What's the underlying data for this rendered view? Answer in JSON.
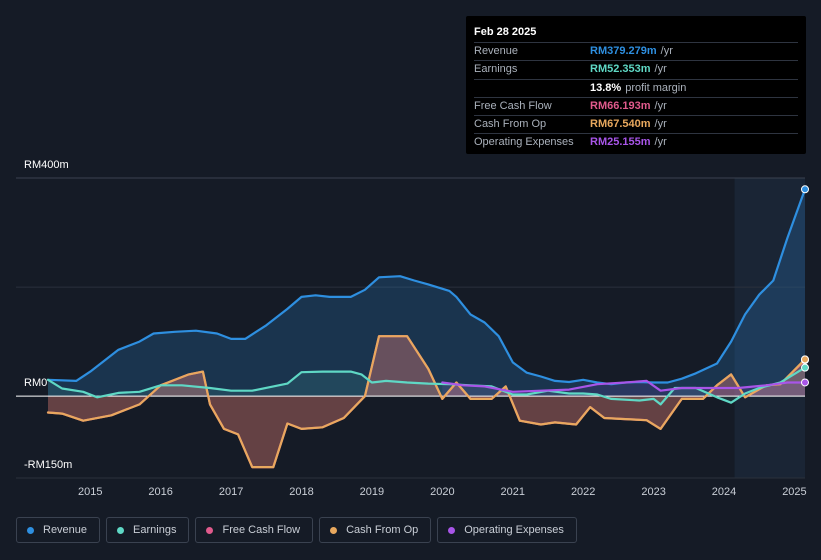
{
  "tooltip": {
    "date": "Feb 28 2025",
    "rows": [
      {
        "label": "Revenue",
        "value": "RM379.279m",
        "unit": "/yr",
        "color": "#2e8fe0"
      },
      {
        "label": "Earnings",
        "value": "RM52.353m",
        "unit": "/yr",
        "color": "#5fd8c5"
      },
      {
        "label": "",
        "value": "13.8%",
        "unit": "profit margin",
        "color": "#ffffff"
      },
      {
        "label": "Free Cash Flow",
        "value": "RM66.193m",
        "unit": "/yr",
        "color": "#e05a8c"
      },
      {
        "label": "Cash From Op",
        "value": "RM67.540m",
        "unit": "/yr",
        "color": "#e8a85e"
      },
      {
        "label": "Operating Expenses",
        "value": "RM25.155m",
        "unit": "/yr",
        "color": "#a855e8"
      }
    ]
  },
  "legend": [
    {
      "label": "Revenue",
      "color": "#2e8fe0"
    },
    {
      "label": "Earnings",
      "color": "#5fd8c5"
    },
    {
      "label": "Free Cash Flow",
      "color": "#e05a8c"
    },
    {
      "label": "Cash From Op",
      "color": "#e8a85e"
    },
    {
      "label": "Operating Expenses",
      "color": "#a855e8"
    }
  ],
  "chart_data": {
    "type": "area",
    "title": "",
    "unit": "RM m",
    "y_labels": [
      "RM400m",
      "RM0",
      "-RM150m"
    ],
    "ylim": [
      -150,
      400
    ],
    "xlim": [
      2014.4,
      2025.15
    ],
    "x_ticks": [
      "2015",
      "2016",
      "2017",
      "2018",
      "2019",
      "2020",
      "2021",
      "2022",
      "2023",
      "2024",
      "2025"
    ],
    "forecast_shade_start": 2024.15,
    "series": [
      {
        "name": "Revenue",
        "color": "#2e8fe0",
        "points": [
          [
            2014.4,
            30
          ],
          [
            2014.8,
            28
          ],
          [
            2015.0,
            45
          ],
          [
            2015.4,
            85
          ],
          [
            2015.7,
            100
          ],
          [
            2015.9,
            115
          ],
          [
            2016.2,
            118
          ],
          [
            2016.5,
            120
          ],
          [
            2016.8,
            115
          ],
          [
            2017.0,
            105
          ],
          [
            2017.2,
            105
          ],
          [
            2017.5,
            130
          ],
          [
            2017.8,
            160
          ],
          [
            2018.0,
            182
          ],
          [
            2018.2,
            185
          ],
          [
            2018.4,
            182
          ],
          [
            2018.7,
            182
          ],
          [
            2018.9,
            195
          ],
          [
            2019.1,
            218
          ],
          [
            2019.4,
            220
          ],
          [
            2019.6,
            212
          ],
          [
            2019.8,
            205
          ],
          [
            2020.1,
            193
          ],
          [
            2020.2,
            182
          ],
          [
            2020.4,
            150
          ],
          [
            2020.6,
            135
          ],
          [
            2020.8,
            110
          ],
          [
            2021.0,
            62
          ],
          [
            2021.2,
            43
          ],
          [
            2021.4,
            36
          ],
          [
            2021.6,
            28
          ],
          [
            2021.8,
            26
          ],
          [
            2022.0,
            30
          ],
          [
            2022.2,
            25
          ],
          [
            2022.4,
            22
          ],
          [
            2022.6,
            25
          ],
          [
            2022.8,
            26
          ],
          [
            2023.0,
            25
          ],
          [
            2023.2,
            25
          ],
          [
            2023.4,
            32
          ],
          [
            2023.6,
            42
          ],
          [
            2023.9,
            60
          ],
          [
            2024.1,
            100
          ],
          [
            2024.3,
            150
          ],
          [
            2024.5,
            186
          ],
          [
            2024.7,
            212
          ],
          [
            2024.9,
            290
          ],
          [
            2025.15,
            379.279
          ]
        ]
      },
      {
        "name": "Earnings",
        "color": "#5fd8c5",
        "points": [
          [
            2014.4,
            30
          ],
          [
            2014.6,
            14
          ],
          [
            2014.9,
            8
          ],
          [
            2015.1,
            -2
          ],
          [
            2015.4,
            6
          ],
          [
            2015.7,
            8
          ],
          [
            2016.0,
            20
          ],
          [
            2016.3,
            20
          ],
          [
            2016.7,
            15
          ],
          [
            2017.0,
            10
          ],
          [
            2017.3,
            10
          ],
          [
            2017.6,
            18
          ],
          [
            2017.8,
            23
          ],
          [
            2018.0,
            44
          ],
          [
            2018.3,
            45
          ],
          [
            2018.7,
            45
          ],
          [
            2018.85,
            40
          ],
          [
            2019.0,
            25
          ],
          [
            2019.2,
            28
          ],
          [
            2019.5,
            25
          ],
          [
            2019.8,
            23
          ],
          [
            2020.1,
            22
          ],
          [
            2020.4,
            20
          ],
          [
            2020.7,
            18
          ],
          [
            2021.0,
            3
          ],
          [
            2021.2,
            3
          ],
          [
            2021.5,
            10
          ],
          [
            2021.8,
            5
          ],
          [
            2022.0,
            5
          ],
          [
            2022.2,
            3
          ],
          [
            2022.4,
            -5
          ],
          [
            2022.8,
            -8
          ],
          [
            2023.0,
            -5
          ],
          [
            2023.1,
            -15
          ],
          [
            2023.3,
            15
          ],
          [
            2023.6,
            15
          ],
          [
            2023.9,
            -2
          ],
          [
            2024.1,
            -12
          ],
          [
            2024.3,
            5
          ],
          [
            2024.5,
            15
          ],
          [
            2024.8,
            25
          ],
          [
            2025.15,
            52.353
          ]
        ]
      },
      {
        "name": "Free Cash Flow",
        "color": "#e05a8c",
        "points": [
          [
            2014.4,
            -30
          ],
          [
            2014.6,
            -32
          ],
          [
            2014.9,
            -45
          ],
          [
            2015.3,
            -35
          ],
          [
            2015.7,
            -15
          ],
          [
            2016.0,
            20
          ],
          [
            2016.4,
            40
          ],
          [
            2016.6,
            45
          ],
          [
            2016.7,
            -15
          ],
          [
            2016.9,
            -60
          ],
          [
            2017.1,
            -70
          ],
          [
            2017.3,
            -130
          ],
          [
            2017.6,
            -130
          ],
          [
            2017.8,
            -50
          ],
          [
            2018.0,
            -60
          ],
          [
            2018.3,
            -57
          ],
          [
            2018.6,
            -40
          ],
          [
            2018.9,
            0
          ],
          [
            2019.1,
            110
          ],
          [
            2019.5,
            110
          ],
          [
            2019.8,
            50
          ],
          [
            2020.0,
            -5
          ],
          [
            2020.2,
            25
          ],
          [
            2020.4,
            -5
          ],
          [
            2020.7,
            -5
          ],
          [
            2020.9,
            18
          ],
          [
            2021.1,
            -45
          ],
          [
            2021.4,
            -52
          ],
          [
            2021.6,
            -48
          ],
          [
            2021.9,
            -52
          ],
          [
            2022.1,
            -20
          ],
          [
            2022.3,
            -40
          ],
          [
            2022.6,
            -42
          ],
          [
            2022.9,
            -44
          ],
          [
            2023.1,
            -60
          ],
          [
            2023.4,
            -5
          ],
          [
            2023.7,
            -5
          ],
          [
            2023.9,
            20
          ],
          [
            2024.1,
            40
          ],
          [
            2024.3,
            -2
          ],
          [
            2024.6,
            20
          ],
          [
            2024.8,
            22
          ],
          [
            2025.15,
            66.193
          ]
        ]
      },
      {
        "name": "Cash From Op",
        "color": "#e8a85e",
        "points": [
          [
            2014.4,
            -30
          ],
          [
            2014.6,
            -32
          ],
          [
            2014.9,
            -45
          ],
          [
            2015.3,
            -35
          ],
          [
            2015.7,
            -15
          ],
          [
            2016.0,
            20
          ],
          [
            2016.4,
            40
          ],
          [
            2016.6,
            45
          ],
          [
            2016.7,
            -15
          ],
          [
            2016.9,
            -60
          ],
          [
            2017.1,
            -70
          ],
          [
            2017.3,
            -130
          ],
          [
            2017.6,
            -130
          ],
          [
            2017.8,
            -50
          ],
          [
            2018.0,
            -60
          ],
          [
            2018.3,
            -57
          ],
          [
            2018.6,
            -40
          ],
          [
            2018.9,
            0
          ],
          [
            2019.1,
            110
          ],
          [
            2019.5,
            110
          ],
          [
            2019.8,
            50
          ],
          [
            2020.0,
            -5
          ],
          [
            2020.2,
            25
          ],
          [
            2020.4,
            -5
          ],
          [
            2020.7,
            -5
          ],
          [
            2020.9,
            18
          ],
          [
            2021.1,
            -45
          ],
          [
            2021.4,
            -52
          ],
          [
            2021.6,
            -48
          ],
          [
            2021.9,
            -52
          ],
          [
            2022.1,
            -20
          ],
          [
            2022.3,
            -40
          ],
          [
            2022.6,
            -42
          ],
          [
            2022.9,
            -44
          ],
          [
            2023.1,
            -60
          ],
          [
            2023.4,
            -5
          ],
          [
            2023.7,
            -5
          ],
          [
            2023.9,
            20
          ],
          [
            2024.1,
            40
          ],
          [
            2024.3,
            -2
          ],
          [
            2024.6,
            20
          ],
          [
            2024.8,
            22
          ],
          [
            2025.15,
            67.54
          ]
        ]
      },
      {
        "name": "Operating Expenses",
        "color": "#a855e8",
        "points": [
          [
            2020.0,
            25
          ],
          [
            2020.3,
            20
          ],
          [
            2020.6,
            18
          ],
          [
            2021.0,
            8
          ],
          [
            2021.4,
            10
          ],
          [
            2021.8,
            12
          ],
          [
            2022.2,
            22
          ],
          [
            2022.6,
            25
          ],
          [
            2022.9,
            28
          ],
          [
            2023.1,
            10
          ],
          [
            2023.4,
            15
          ],
          [
            2023.8,
            15
          ],
          [
            2024.2,
            15
          ],
          [
            2024.6,
            20
          ],
          [
            2024.9,
            25
          ],
          [
            2025.15,
            25.155
          ]
        ]
      }
    ]
  }
}
